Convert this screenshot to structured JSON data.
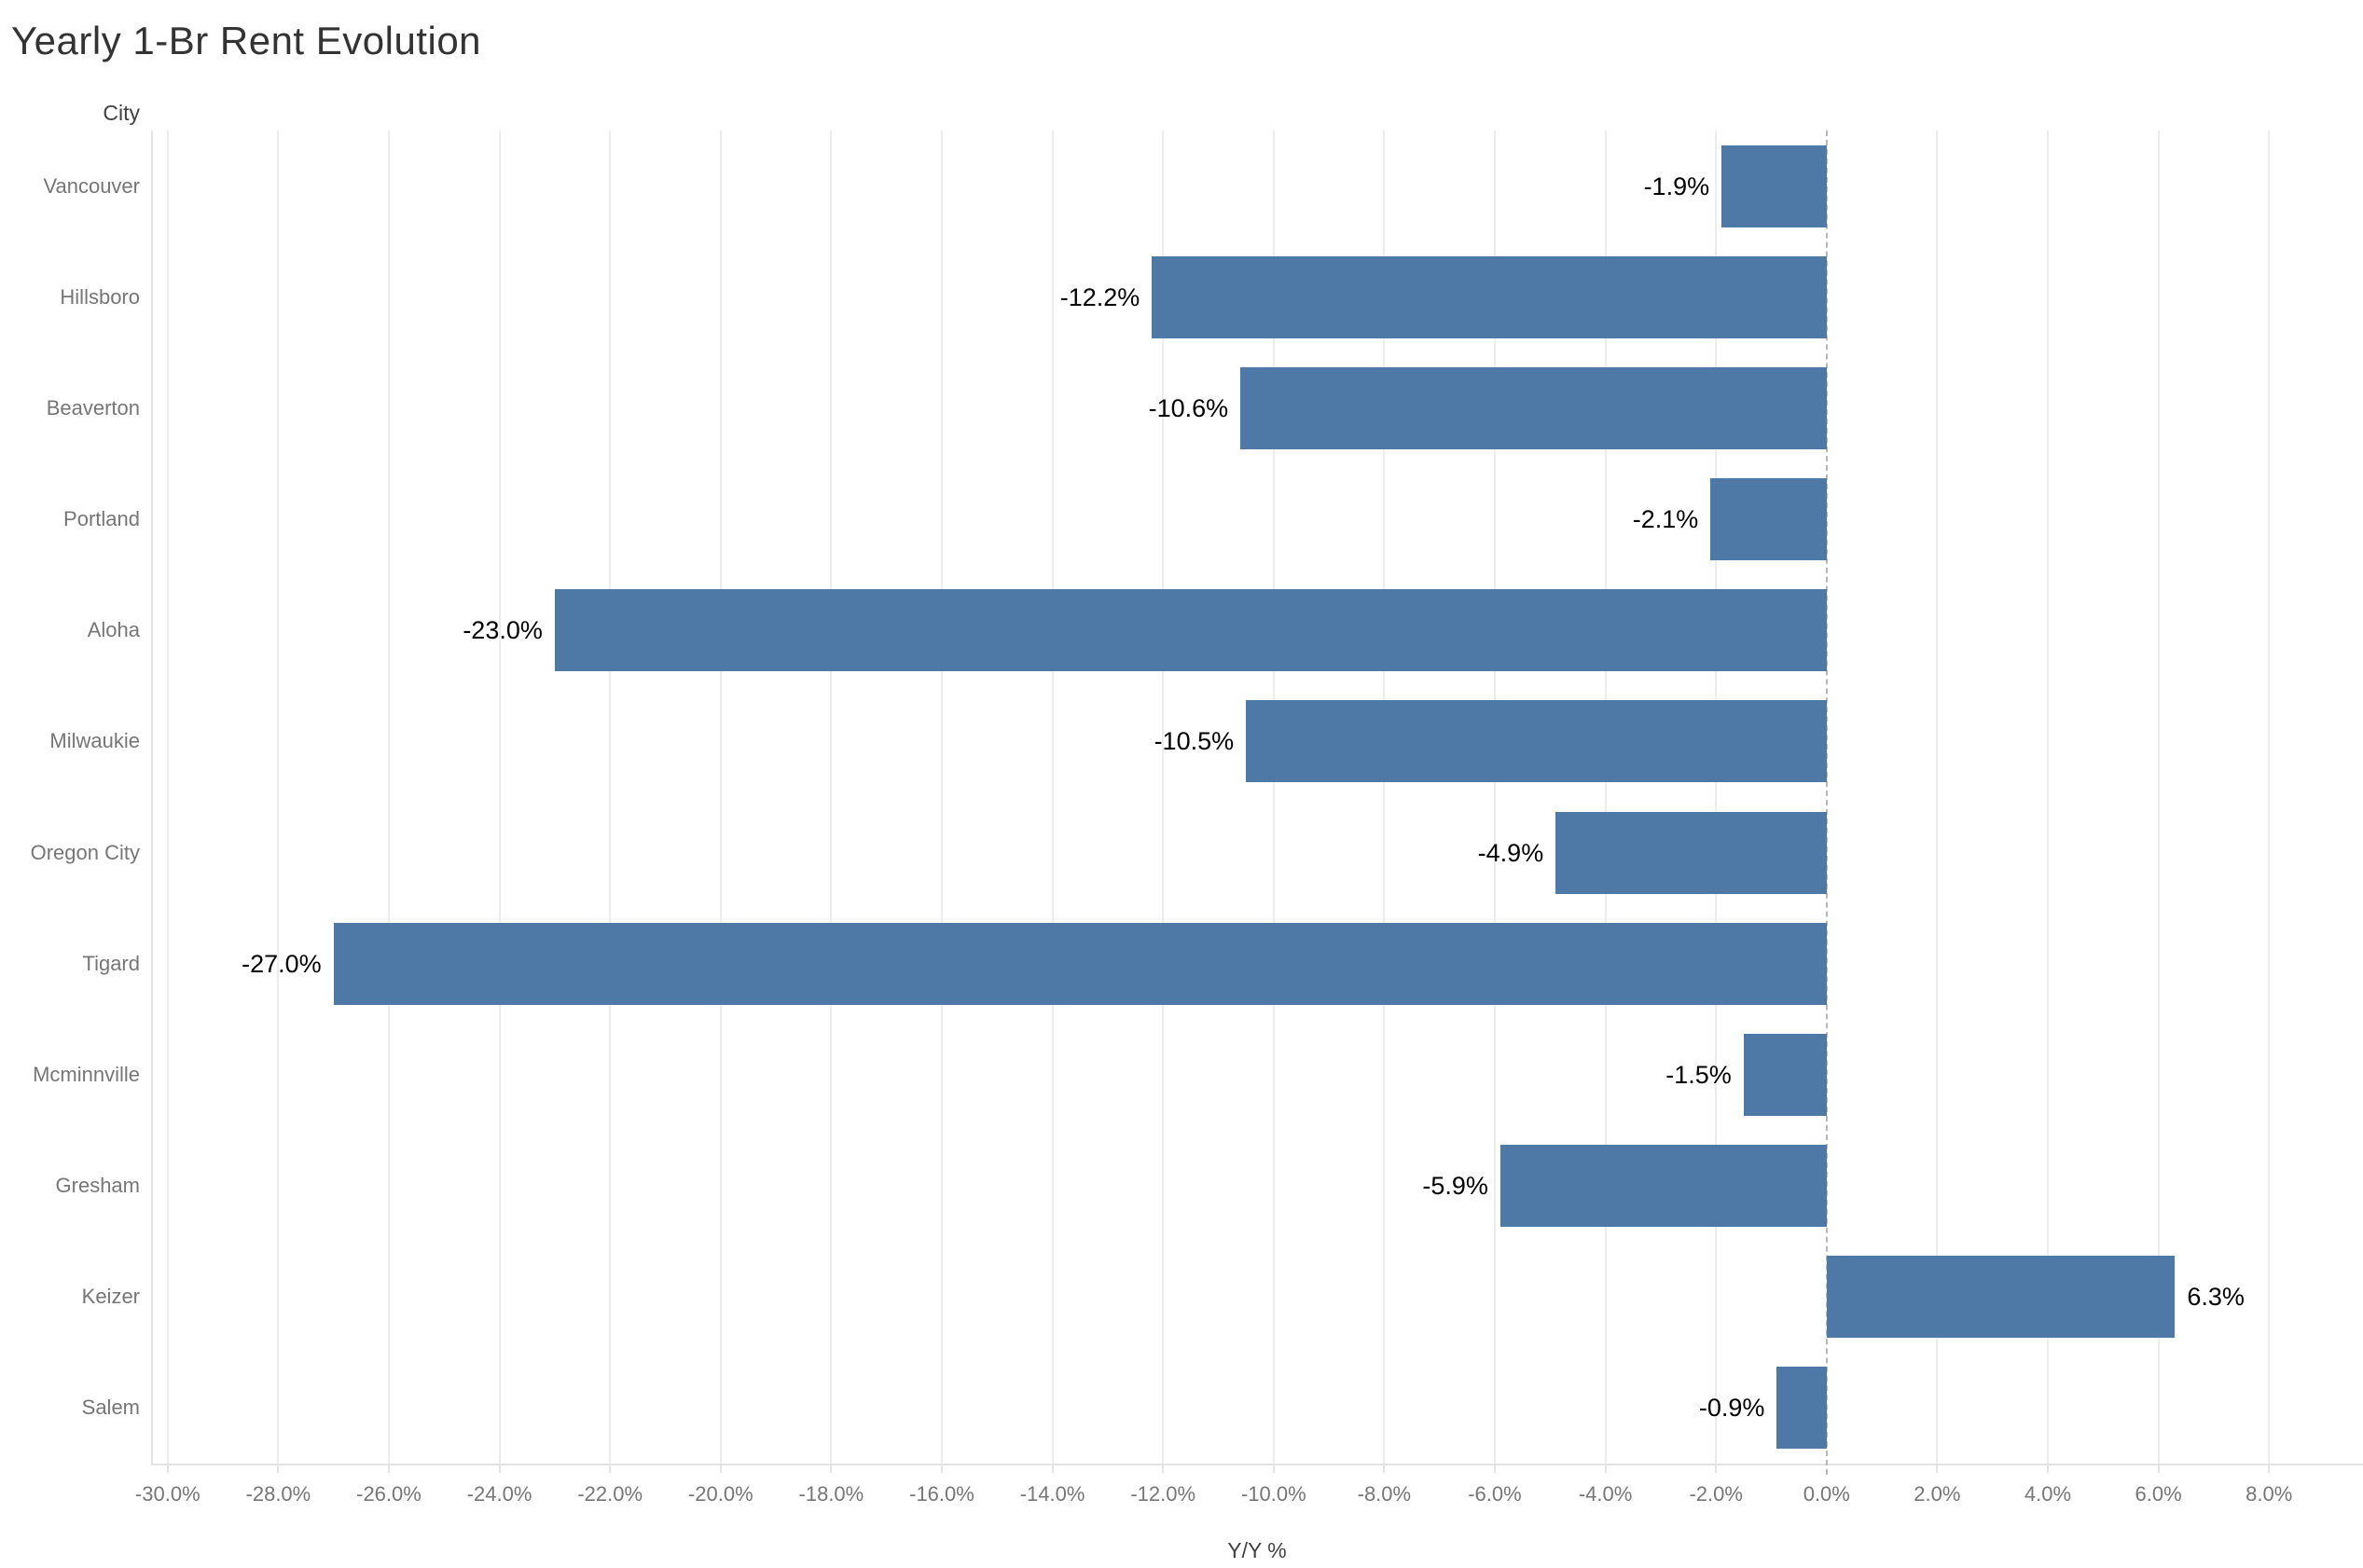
{
  "title": "Yearly 1-Br Rent Evolution",
  "chart_data": {
    "type": "bar",
    "orientation": "horizontal",
    "title": "Yearly 1-Br Rent Evolution",
    "xlabel": "Y/Y %",
    "ylabel": "City",
    "categories": [
      "Vancouver",
      "Hillsboro",
      "Beaverton",
      "Portland",
      "Aloha",
      "Milwaukie",
      "Oregon City",
      "Tigard",
      "Mcminnville",
      "Gresham",
      "Keizer",
      "Salem"
    ],
    "values": [
      -1.9,
      -12.2,
      -10.6,
      -2.1,
      -23.0,
      -10.5,
      -4.9,
      -27.0,
      -1.5,
      -5.9,
      6.3,
      -0.9
    ],
    "data_labels": [
      "-1.9%",
      "-12.2%",
      "-10.6%",
      "-2.1%",
      "-23.0%",
      "-10.5%",
      "-4.9%",
      "-27.0%",
      "-1.5%",
      "-5.9%",
      "6.3%",
      "-0.9%"
    ],
    "xlim": [
      -30.3,
      9.7
    ],
    "xticks": [
      -30,
      -28,
      -26,
      -24,
      -22,
      -20,
      -18,
      -16,
      -14,
      -12,
      -10,
      -8,
      -6,
      -4,
      -2,
      0,
      2,
      4,
      6,
      8
    ],
    "xtick_labels": [
      "-30.0%",
      "-28.0%",
      "-26.0%",
      "-24.0%",
      "-22.0%",
      "-20.0%",
      "-18.0%",
      "-16.0%",
      "-14.0%",
      "-12.0%",
      "-10.0%",
      "-8.0%",
      "-6.0%",
      "-4.0%",
      "-2.0%",
      "0.0%",
      "2.0%",
      "4.0%",
      "6.0%",
      "8.0%"
    ],
    "grid": "vertical",
    "zero_line": "dashed",
    "legend": "none",
    "colors": {
      "bar": "#4e79a7",
      "gridline": "#ededed",
      "axis_border": "#e3e3e3",
      "zero_line": "#b8b8b8",
      "tick_label": "#767676",
      "category_label": "#767676",
      "value_label": "#000000",
      "title": "#333333",
      "axis_title": "#424242",
      "background": "#ffffff"
    }
  }
}
